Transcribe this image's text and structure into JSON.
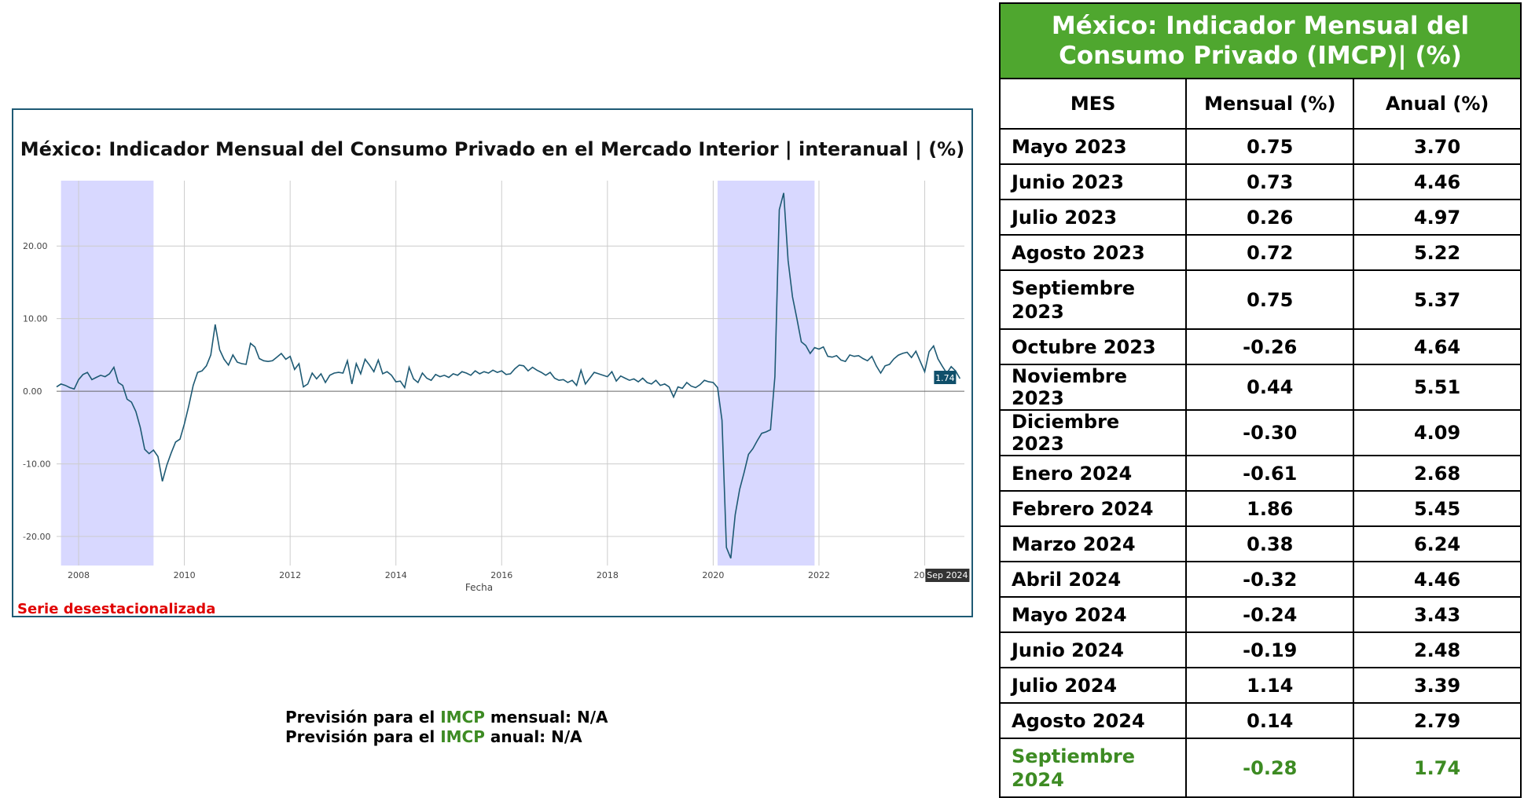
{
  "chart_data": {
    "type": "line",
    "title": "México: Indicador Mensual del Consumo Privado en el Mercado Interior | interanual | (%)",
    "xlabel": "Fecha",
    "ylabel": "",
    "x_ticks": [
      "2008",
      "2010",
      "2012",
      "2014",
      "2016",
      "2018",
      "2020",
      "2022",
      "2024"
    ],
    "y_ticks": [
      "20.00",
      "10.00",
      "0.00",
      "-10.00",
      "-20.00"
    ],
    "ylim": [
      -24,
      29
    ],
    "xlim": [
      "2007-08",
      "2024-10"
    ],
    "grid": true,
    "line_color": "#1e5a74",
    "shade_color": "#d8d8ff",
    "recessions": [
      [
        "2007-09",
        "2009-06"
      ],
      [
        "2020-02",
        "2021-12"
      ]
    ],
    "last_value_label": "1.74",
    "last_date_label": "Sep 2024",
    "series": [
      {
        "values": [
          [
            "2007-08",
            0.6
          ],
          [
            "2007-09",
            1.0
          ],
          [
            "2007-10",
            0.8
          ],
          [
            "2007-11",
            0.5
          ],
          [
            "2007-12",
            0.3
          ],
          [
            "2008-01",
            1.6
          ],
          [
            "2008-02",
            2.3
          ],
          [
            "2008-03",
            2.6
          ],
          [
            "2008-04",
            1.6
          ],
          [
            "2008-05",
            1.9
          ],
          [
            "2008-06",
            2.2
          ],
          [
            "2008-07",
            2.0
          ],
          [
            "2008-08",
            2.4
          ],
          [
            "2008-09",
            3.3
          ],
          [
            "2008-10",
            1.2
          ],
          [
            "2008-11",
            0.8
          ],
          [
            "2008-12",
            -1.1
          ],
          [
            "2008-13",
            -1.5
          ],
          [
            "2009-02",
            -2.8
          ],
          [
            "2009-03",
            -5.0
          ],
          [
            "2009-04",
            -8.0
          ],
          [
            "2009-05",
            -8.6
          ],
          [
            "2009-06",
            -8.1
          ],
          [
            "2009-07",
            -9.0
          ],
          [
            "2009-08",
            -12.4
          ],
          [
            "2009-09",
            -10.2
          ],
          [
            "2009-10",
            -8.5
          ],
          [
            "2009-11",
            -7.0
          ],
          [
            "2009-12",
            -6.6
          ],
          [
            "2010-01",
            -4.5
          ],
          [
            "2010-02",
            -2.0
          ],
          [
            "2010-03",
            0.8
          ],
          [
            "2010-04",
            2.6
          ],
          [
            "2010-05",
            2.8
          ],
          [
            "2010-06",
            3.5
          ],
          [
            "2010-07",
            5.0
          ],
          [
            "2010-08",
            9.2
          ],
          [
            "2010-09",
            5.7
          ],
          [
            "2010-10",
            4.4
          ],
          [
            "2010-11",
            3.6
          ],
          [
            "2010-12",
            5.0
          ],
          [
            "2011-01",
            4.0
          ],
          [
            "2011-02",
            3.8
          ],
          [
            "2011-03",
            3.7
          ],
          [
            "2011-04",
            6.6
          ],
          [
            "2011-05",
            6.1
          ],
          [
            "2011-06",
            4.5
          ],
          [
            "2011-07",
            4.2
          ],
          [
            "2011-08",
            4.1
          ],
          [
            "2011-09",
            4.2
          ],
          [
            "2011-10",
            4.7
          ],
          [
            "2011-11",
            5.2
          ],
          [
            "2011-12",
            4.4
          ],
          [
            "2012-01",
            4.8
          ],
          [
            "2012-02",
            3.0
          ],
          [
            "2012-03",
            3.8
          ],
          [
            "2012-04",
            0.6
          ],
          [
            "2012-05",
            1.0
          ],
          [
            "2012-06",
            2.5
          ],
          [
            "2012-07",
            1.7
          ],
          [
            "2012-08",
            2.4
          ],
          [
            "2012-09",
            1.2
          ],
          [
            "2012-10",
            2.2
          ],
          [
            "2012-11",
            2.5
          ],
          [
            "2012-12",
            2.6
          ],
          [
            "2013-01",
            2.5
          ],
          [
            "2013-02",
            4.2
          ],
          [
            "2013-03",
            1.0
          ],
          [
            "2013-04",
            3.8
          ],
          [
            "2013-05",
            2.4
          ],
          [
            "2013-06",
            4.4
          ],
          [
            "2013-07",
            3.6
          ],
          [
            "2013-08",
            2.7
          ],
          [
            "2013-09",
            4.3
          ],
          [
            "2013-10",
            2.4
          ],
          [
            "2013-11",
            2.7
          ],
          [
            "2013-12",
            2.2
          ],
          [
            "2014-01",
            1.3
          ],
          [
            "2014-02",
            1.4
          ],
          [
            "2014-03",
            0.5
          ],
          [
            "2014-04",
            3.3
          ],
          [
            "2014-05",
            1.7
          ],
          [
            "2014-06",
            1.2
          ],
          [
            "2014-07",
            2.5
          ],
          [
            "2014-08",
            1.8
          ],
          [
            "2014-09",
            1.5
          ],
          [
            "2014-10",
            2.3
          ],
          [
            "2014-11",
            2.0
          ],
          [
            "2014-12",
            2.2
          ],
          [
            "2015-01",
            1.9
          ],
          [
            "2015-02",
            2.4
          ],
          [
            "2015-03",
            2.2
          ],
          [
            "2015-04",
            2.7
          ],
          [
            "2015-05",
            2.5
          ],
          [
            "2015-06",
            2.2
          ],
          [
            "2015-07",
            2.8
          ],
          [
            "2015-08",
            2.4
          ],
          [
            "2015-09",
            2.7
          ],
          [
            "2015-10",
            2.5
          ],
          [
            "2015-11",
            2.9
          ],
          [
            "2015-12",
            2.6
          ],
          [
            "2016-01",
            2.8
          ],
          [
            "2016-02",
            2.3
          ],
          [
            "2016-03",
            2.4
          ],
          [
            "2016-04",
            3.1
          ],
          [
            "2016-05",
            3.6
          ],
          [
            "2016-06",
            3.5
          ],
          [
            "2016-07",
            2.8
          ],
          [
            "2016-08",
            3.3
          ],
          [
            "2016-09",
            2.9
          ],
          [
            "2016-10",
            2.6
          ],
          [
            "2016-11",
            2.2
          ],
          [
            "2016-12",
            2.6
          ],
          [
            "2017-01",
            1.8
          ],
          [
            "2017-02",
            1.5
          ],
          [
            "2017-03",
            1.6
          ],
          [
            "2017-04",
            1.2
          ],
          [
            "2017-05",
            1.5
          ],
          [
            "2017-06",
            0.8
          ],
          [
            "2017-07",
            2.9
          ],
          [
            "2017-08",
            1.0
          ],
          [
            "2017-09",
            1.8
          ],
          [
            "2017-10",
            2.6
          ],
          [
            "2017-11",
            2.4
          ],
          [
            "2017-12",
            2.2
          ],
          [
            "2018-01",
            2.0
          ],
          [
            "2018-02",
            2.7
          ],
          [
            "2018-03",
            1.4
          ],
          [
            "2018-04",
            2.1
          ],
          [
            "2018-05",
            1.8
          ],
          [
            "2018-06",
            1.5
          ],
          [
            "2018-07",
            1.7
          ],
          [
            "2018-08",
            1.3
          ],
          [
            "2018-09",
            1.8
          ],
          [
            "2018-10",
            1.2
          ],
          [
            "2018-11",
            1.0
          ],
          [
            "2018-12",
            1.5
          ],
          [
            "2019-01",
            0.8
          ],
          [
            "2019-02",
            1.0
          ],
          [
            "2019-03",
            0.6
          ],
          [
            "2019-04",
            -0.8
          ],
          [
            "2019-05",
            0.6
          ],
          [
            "2019-06",
            0.4
          ],
          [
            "2019-07",
            1.2
          ],
          [
            "2019-08",
            0.7
          ],
          [
            "2019-09",
            0.5
          ],
          [
            "2019-10",
            0.9
          ],
          [
            "2019-11",
            1.5
          ],
          [
            "2019-12",
            1.3
          ],
          [
            "2020-01",
            1.2
          ],
          [
            "2020-02",
            0.5
          ],
          [
            "2020-03",
            -4.0
          ],
          [
            "2020-04",
            -21.5
          ],
          [
            "2020-05",
            -23.0
          ],
          [
            "2020-06",
            -17.0
          ],
          [
            "2020-07",
            -13.5
          ],
          [
            "2020-08",
            -11.2
          ],
          [
            "2020-09",
            -8.7
          ],
          [
            "2020-10",
            -7.9
          ],
          [
            "2020-11",
            -6.8
          ],
          [
            "2020-12",
            -5.8
          ],
          [
            "2021-01",
            -5.6
          ],
          [
            "2021-02",
            -5.3
          ],
          [
            "2021-03",
            2.0
          ],
          [
            "2021-04",
            25.0
          ],
          [
            "2021-05",
            27.3
          ],
          [
            "2021-06",
            18.0
          ],
          [
            "2021-07",
            13.0
          ],
          [
            "2021-08",
            10.0
          ],
          [
            "2021-09",
            6.8
          ],
          [
            "2021-10",
            6.3
          ],
          [
            "2021-11",
            5.2
          ],
          [
            "2021-12",
            6.0
          ],
          [
            "2022-01",
            5.8
          ],
          [
            "2022-02",
            6.1
          ],
          [
            "2022-03",
            4.8
          ],
          [
            "2022-04",
            4.7
          ],
          [
            "2022-05",
            4.9
          ],
          [
            "2022-06",
            4.3
          ],
          [
            "2022-07",
            4.1
          ],
          [
            "2022-08",
            5.0
          ],
          [
            "2022-09",
            4.8
          ],
          [
            "2022-10",
            4.9
          ],
          [
            "2022-11",
            4.5
          ],
          [
            "2022-12",
            4.2
          ],
          [
            "2023-01",
            4.8
          ],
          [
            "2023-02",
            3.5
          ],
          [
            "2023-03",
            2.5
          ],
          [
            "2023-04",
            3.5
          ],
          [
            "2023-05",
            3.7
          ],
          [
            "2023-06",
            4.46
          ],
          [
            "2023-07",
            4.97
          ],
          [
            "2023-08",
            5.22
          ],
          [
            "2023-09",
            5.37
          ],
          [
            "2023-10",
            4.64
          ],
          [
            "2023-11",
            5.51
          ],
          [
            "2023-12",
            4.09
          ],
          [
            "2024-01",
            2.68
          ],
          [
            "2024-02",
            5.45
          ],
          [
            "2024-03",
            6.24
          ],
          [
            "2024-04",
            4.46
          ],
          [
            "2024-05",
            3.43
          ],
          [
            "2024-06",
            2.48
          ],
          [
            "2024-07",
            3.39
          ],
          [
            "2024-08",
            2.79
          ],
          [
            "2024-09",
            1.74
          ]
        ]
      }
    ]
  },
  "serie_label": "Serie desestacionalizada",
  "prevision": {
    "line1_prefix": "Previsión para el ",
    "line1_hl": "IMCP",
    "line1_suffix": " mensual: N/A",
    "line2_prefix": "Previsión para el ",
    "line2_hl": "IMCP",
    "line2_suffix": " anual: N/A"
  },
  "table": {
    "title_line1": "México: Indicador Mensual del",
    "title_line2": "Consumo Privado (IMCP)|  (%)",
    "headers": [
      "MES",
      "Mensual (%)",
      "Anual (%)"
    ],
    "rows": [
      [
        "Mayo 2023",
        "0.75",
        "3.70"
      ],
      [
        "Junio 2023",
        "0.73",
        "4.46"
      ],
      [
        "Julio 2023",
        "0.26",
        "4.97"
      ],
      [
        "Agosto 2023",
        "0.72",
        "5.22"
      ],
      [
        "Septiembre 2023",
        "0.75",
        "5.37"
      ],
      [
        "Octubre 2023",
        "-0.26",
        "4.64"
      ],
      [
        "Noviembre 2023",
        "0.44",
        "5.51"
      ],
      [
        "Diciembre 2023",
        "-0.30",
        "4.09"
      ],
      [
        "Enero 2024",
        "-0.61",
        "2.68"
      ],
      [
        "Febrero 2024",
        "1.86",
        "5.45"
      ],
      [
        "Marzo 2024",
        "0.38",
        "6.24"
      ],
      [
        "Abril 2024",
        "-0.32",
        "4.46"
      ],
      [
        "Mayo 2024",
        "-0.24",
        "3.43"
      ],
      [
        "Junio 2024",
        "-0.19",
        "2.48"
      ],
      [
        "Julio 2024",
        "1.14",
        "3.39"
      ],
      [
        "Agosto 2024",
        "0.14",
        "2.79"
      ],
      [
        "Septiembre 2024",
        "-0.28",
        "1.74"
      ]
    ],
    "highlight_color": "#3d8b23",
    "header_bg": "#4fa72f"
  }
}
